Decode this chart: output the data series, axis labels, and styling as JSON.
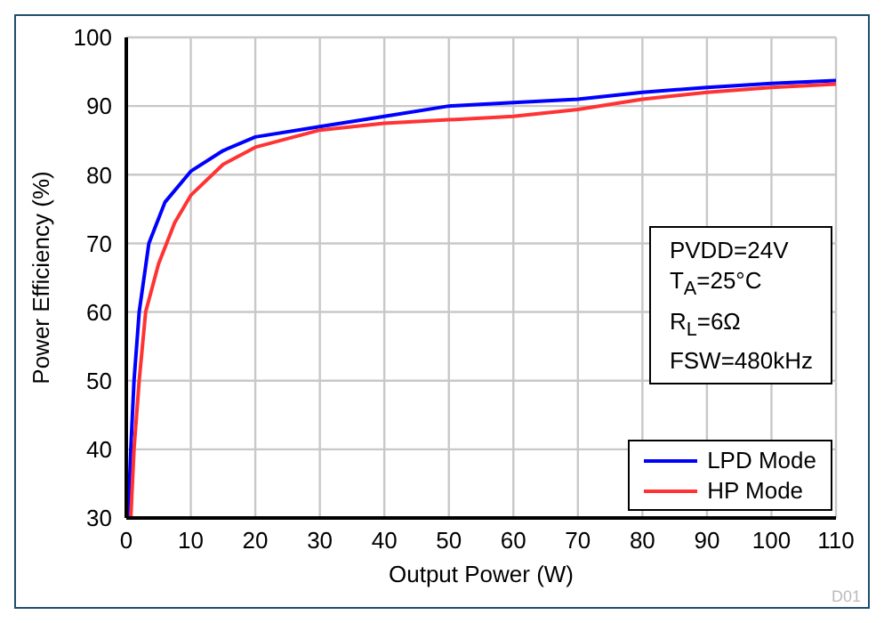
{
  "chart_data": {
    "type": "line",
    "xlabel": "Output Power (W)",
    "ylabel": "Power Efficiency (%)",
    "x": [
      0.3,
      0.7,
      1.2,
      2,
      3.5,
      6,
      10,
      15,
      20,
      30,
      40,
      50,
      60,
      70,
      80,
      90,
      100,
      110
    ],
    "series": [
      {
        "name": "LPD Mode",
        "color": "#0000ff",
        "values": [
          30,
          40,
          50,
          60,
          70,
          76,
          80.5,
          83.5,
          85.5,
          87,
          88.5,
          90,
          90.5,
          91,
          92,
          92.7,
          93.3,
          93.7
        ]
      },
      {
        "name": "HP Mode",
        "color": "#ff3333",
        "x": [
          0.7,
          1.2,
          2,
          3,
          5,
          7.5,
          10,
          15,
          20,
          30,
          40,
          50,
          60,
          70,
          80,
          90,
          100,
          110
        ],
        "values": [
          30,
          40,
          50,
          60,
          67,
          73,
          77,
          81.5,
          84,
          86.5,
          87.5,
          88,
          88.5,
          89.5,
          91,
          92,
          92.7,
          93.2
        ]
      }
    ],
    "xlim": [
      0,
      110
    ],
    "xticks": [
      0,
      10,
      20,
      30,
      40,
      50,
      60,
      70,
      80,
      90,
      100,
      110
    ],
    "ylim": [
      30,
      100
    ],
    "yticks": [
      30,
      40,
      50,
      60,
      70,
      80,
      90,
      100
    ],
    "grid": true,
    "legend": "bottom right",
    "marker": "none",
    "line_style": "solid",
    "annotations": [
      "PVDD=24V",
      "T$_{A}$=25°C",
      "R$_{L}$=6Ω",
      "FSW=480kHz",
      "D01"
    ]
  }
}
